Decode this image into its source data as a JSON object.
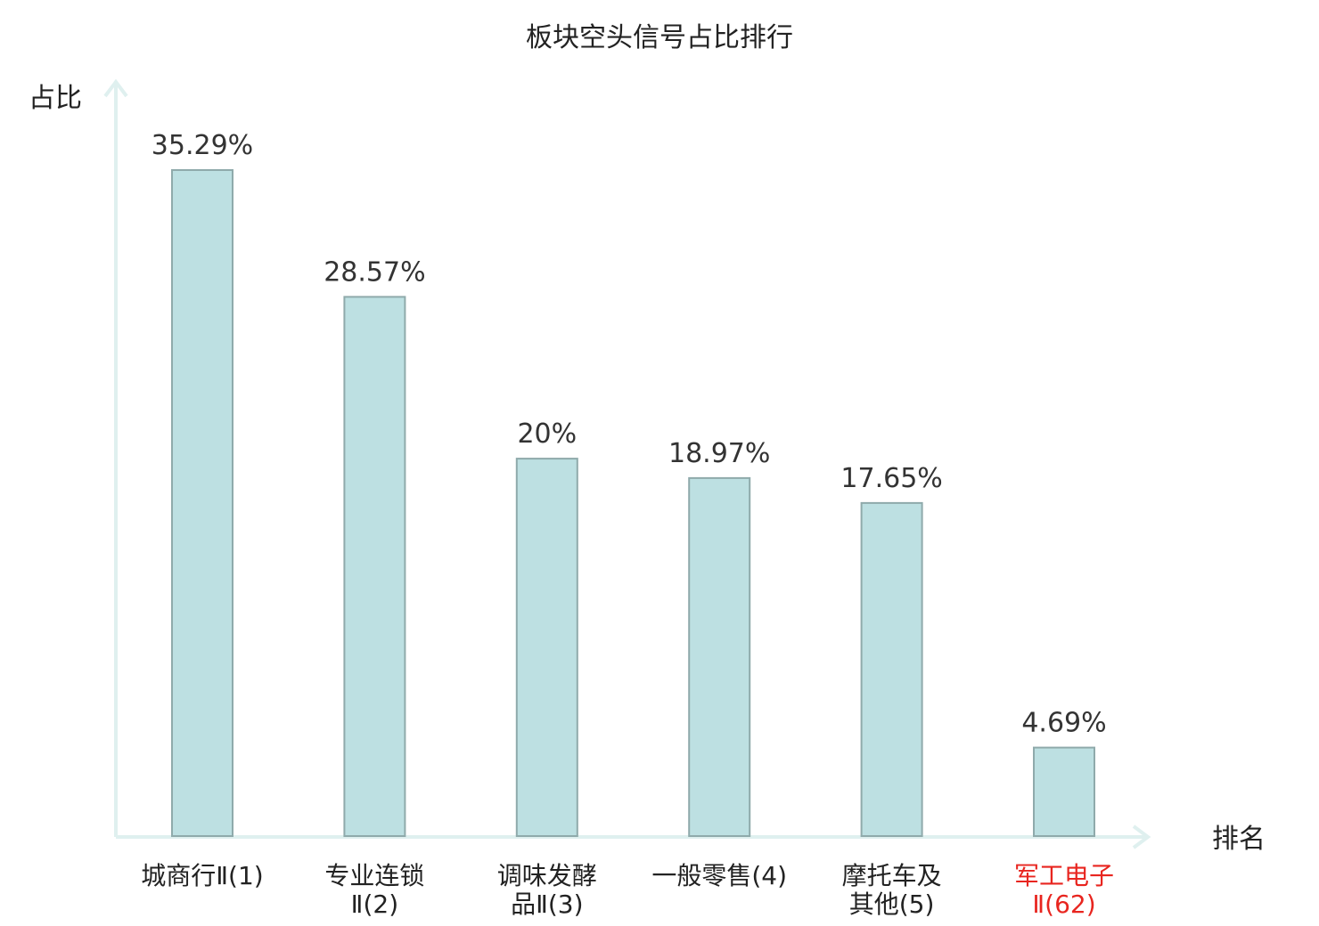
{
  "colors": {
    "bar_fill": "#bde0e2",
    "bar_stroke": "#8faaab",
    "axis": "#dff0ef",
    "text": "#222222",
    "highlight": "#e8251f"
  },
  "chart_data": {
    "type": "bar",
    "title": "板块空头信号占比排行",
    "ylabel": "占比",
    "xlabel": "排名",
    "ylim": [
      0,
      40
    ],
    "grid": false,
    "categories": [
      {
        "lines": [
          "城商行Ⅱ(1)"
        ],
        "highlight": false
      },
      {
        "lines": [
          "专业连锁",
          "Ⅱ(2)"
        ],
        "highlight": false
      },
      {
        "lines": [
          "调味发酵",
          "品Ⅱ(3)"
        ],
        "highlight": false
      },
      {
        "lines": [
          "一般零售(4)"
        ],
        "highlight": false
      },
      {
        "lines": [
          "摩托车及",
          "其他(5)"
        ],
        "highlight": false
      },
      {
        "lines": [
          "军工电子",
          "Ⅱ(62)"
        ],
        "highlight": true
      }
    ],
    "values": [
      35.29,
      28.57,
      20,
      18.97,
      17.65,
      4.69
    ],
    "value_labels": [
      "35.29%",
      "28.57%",
      "20%",
      "18.97%",
      "17.65%",
      "4.69%"
    ]
  }
}
